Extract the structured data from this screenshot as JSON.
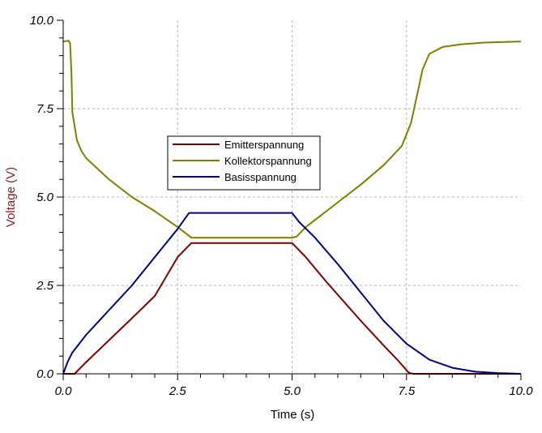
{
  "chart_data": {
    "type": "line",
    "title": "",
    "xlabel": "Time (s)",
    "ylabel": "Voltage (V)",
    "xlim": [
      0,
      10
    ],
    "ylim": [
      0,
      10
    ],
    "x_ticks": [
      "0.0",
      "2.5",
      "5.0",
      "7.5",
      "10.0"
    ],
    "y_ticks": [
      "0.0",
      "2.5",
      "5.0",
      "7.5",
      "10.0"
    ],
    "grid": true,
    "legend_position": "center",
    "colors": {
      "xlabel": "#000000",
      "ylabel": "#8b1a1a"
    },
    "series": [
      {
        "name": "Emitterspannung",
        "color": "#800000",
        "points": [
          [
            0,
            0
          ],
          [
            0.25,
            0
          ],
          [
            0.5,
            0.33
          ],
          [
            1.0,
            0.95
          ],
          [
            1.5,
            1.57
          ],
          [
            2.0,
            2.2
          ],
          [
            2.5,
            3.3
          ],
          [
            2.8,
            3.7
          ],
          [
            5.0,
            3.7
          ],
          [
            5.3,
            3.3
          ],
          [
            5.75,
            2.6
          ],
          [
            6.5,
            1.5
          ],
          [
            7.0,
            0.8
          ],
          [
            7.3,
            0.4
          ],
          [
            7.55,
            0.03
          ],
          [
            7.65,
            0
          ],
          [
            10,
            0
          ]
        ]
      },
      {
        "name": "Kollektorspannung",
        "color": "#808000",
        "points": [
          [
            0,
            9.4
          ],
          [
            0.12,
            9.42
          ],
          [
            0.15,
            9.35
          ],
          [
            0.18,
            8.5
          ],
          [
            0.2,
            7.4
          ],
          [
            0.3,
            6.6
          ],
          [
            0.4,
            6.3
          ],
          [
            0.5,
            6.1
          ],
          [
            1.0,
            5.5
          ],
          [
            1.5,
            5.0
          ],
          [
            2.0,
            4.6
          ],
          [
            2.5,
            4.15
          ],
          [
            2.8,
            3.85
          ],
          [
            5.0,
            3.85
          ],
          [
            5.1,
            3.88
          ],
          [
            5.3,
            4.15
          ],
          [
            6.0,
            4.85
          ],
          [
            6.5,
            5.35
          ],
          [
            7.0,
            5.9
          ],
          [
            7.4,
            6.45
          ],
          [
            7.6,
            7.1
          ],
          [
            7.75,
            8.0
          ],
          [
            7.85,
            8.6
          ],
          [
            8.0,
            9.05
          ],
          [
            8.3,
            9.25
          ],
          [
            8.7,
            9.32
          ],
          [
            9.2,
            9.37
          ],
          [
            10,
            9.4
          ]
        ]
      },
      {
        "name": "Basisspannung",
        "color": "#000080",
        "points": [
          [
            0,
            0
          ],
          [
            0.1,
            0.35
          ],
          [
            0.2,
            0.6
          ],
          [
            0.35,
            0.85
          ],
          [
            0.5,
            1.1
          ],
          [
            1.0,
            1.8
          ],
          [
            1.5,
            2.5
          ],
          [
            2.0,
            3.3
          ],
          [
            2.5,
            4.1
          ],
          [
            2.75,
            4.55
          ],
          [
            5.0,
            4.55
          ],
          [
            5.15,
            4.3
          ],
          [
            5.5,
            3.85
          ],
          [
            6.0,
            3.1
          ],
          [
            6.5,
            2.3
          ],
          [
            7.0,
            1.5
          ],
          [
            7.5,
            0.85
          ],
          [
            8.0,
            0.4
          ],
          [
            8.5,
            0.17
          ],
          [
            9.0,
            0.06
          ],
          [
            9.5,
            0.02
          ],
          [
            10,
            0
          ]
        ]
      }
    ]
  }
}
